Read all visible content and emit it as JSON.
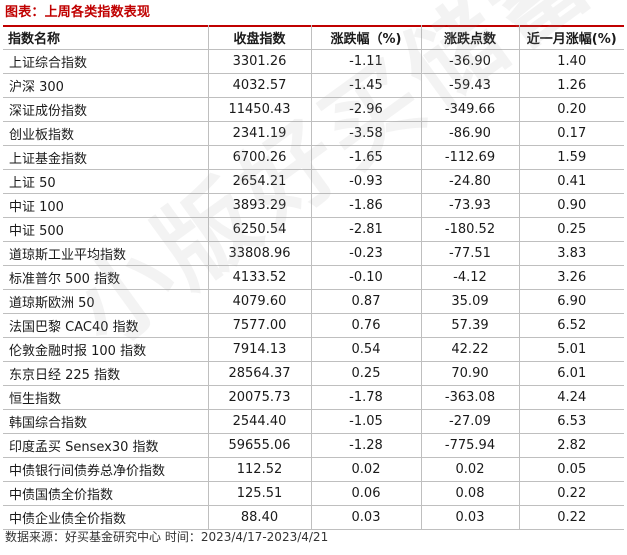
{
  "title": "图表：上周各类指数表现",
  "accent_color": "#c00000",
  "table": {
    "headers": [
      "指数名称",
      "收盘指数",
      "涨跌幅（%)",
      "涨跌点数",
      "近一月涨幅(%)"
    ],
    "rows": [
      [
        "上证综合指数",
        "3301.26",
        "-1.11",
        "-36.90",
        "1.40"
      ],
      [
        "沪深 300",
        "4032.57",
        "-1.45",
        "-59.43",
        "1.26"
      ],
      [
        "深证成份指数",
        "11450.43",
        "-2.96",
        "-349.66",
        "0.20"
      ],
      [
        "创业板指数",
        "2341.19",
        "-3.58",
        "-86.90",
        "0.17"
      ],
      [
        "上证基金指数",
        "6700.26",
        "-1.65",
        "-112.69",
        "1.59"
      ],
      [
        "上证 50",
        "2654.21",
        "-0.93",
        "-24.80",
        "0.41"
      ],
      [
        "中证 100",
        "3893.29",
        "-1.86",
        "-73.93",
        "0.90"
      ],
      [
        "中证 500",
        "6250.54",
        "-2.81",
        "-180.52",
        "0.25"
      ],
      [
        "道琼斯工业平均指数",
        "33808.96",
        "-0.23",
        "-77.51",
        "3.83"
      ],
      [
        "标准普尔 500 指数",
        "4133.52",
        "-0.10",
        "-4.12",
        "3.26"
      ],
      [
        "道琼斯欧洲 50",
        "4079.60",
        "0.87",
        "35.09",
        "6.90"
      ],
      [
        "法国巴黎 CAC40 指数",
        "7577.00",
        "0.76",
        "57.39",
        "6.52"
      ],
      [
        "伦敦金融时报 100 指数",
        "7914.13",
        "0.54",
        "42.22",
        "5.01"
      ],
      [
        "东京日经 225 指数",
        "28564.37",
        "0.25",
        "70.90",
        "6.01"
      ],
      [
        "恒生指数",
        "20075.73",
        "-1.78",
        "-363.08",
        "4.24"
      ],
      [
        "韩国综合指数",
        "2544.40",
        "-1.05",
        "-27.09",
        "6.53"
      ],
      [
        "印度孟买 Sensex30 指数",
        "59655.06",
        "-1.28",
        "-775.94",
        "2.82"
      ],
      [
        "中债银行间债券总净价指数",
        "112.52",
        "0.02",
        "0.02",
        "0.05"
      ],
      [
        "中债国债全价指数",
        "125.51",
        "0.06",
        "0.08",
        "0.22"
      ],
      [
        "中债企业债全价指数",
        "88.40",
        "0.03",
        "0.03",
        "0.22"
      ]
    ]
  },
  "source": "数据来源：好买基金研究中心 时间：2023/4/17-2023/4/21",
  "watermark": "小版好买储蓄"
}
